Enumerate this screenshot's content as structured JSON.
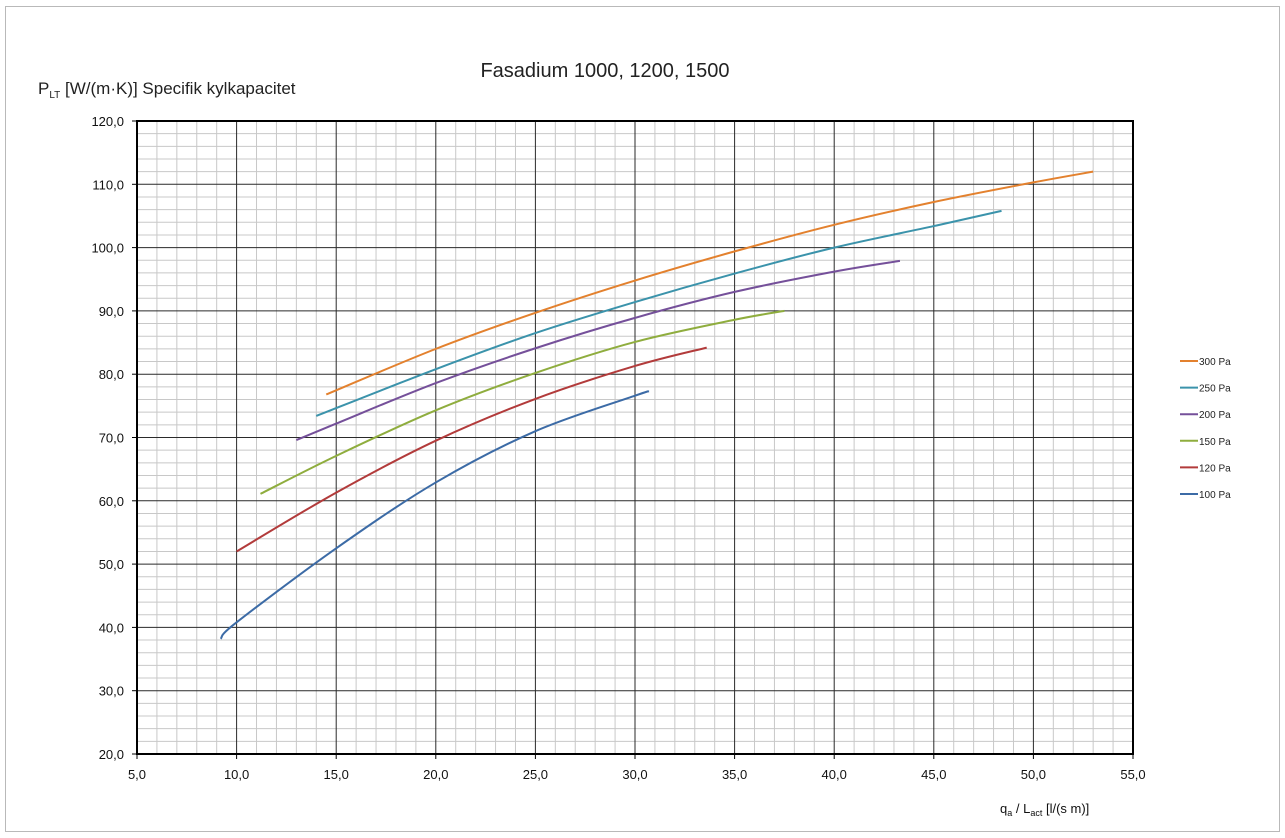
{
  "chart_data": {
    "type": "line",
    "title": "Fasadium 1000, 1200, 1500",
    "ylabel": {
      "main": "P",
      "sub": "LT",
      "rest": " [W/(m·K)] Specifik kylkapacitet"
    },
    "xlabel": {
      "q": "q",
      "q_sub": "a",
      "sep": " / L",
      "l_sub": "act",
      "unit": " [l/(s m)]"
    },
    "xlim": [
      5,
      55
    ],
    "ylim": [
      20,
      120
    ],
    "x_ticks": [
      "5,0",
      "10,0",
      "15,0",
      "20,0",
      "25,0",
      "30,0",
      "35,0",
      "40,0",
      "45,0",
      "50,0",
      "55,0"
    ],
    "y_ticks": [
      "20,0",
      "30,0",
      "40,0",
      "50,0",
      "60,0",
      "70,0",
      "80,0",
      "90,0",
      "100,0",
      "110,0",
      "120,0"
    ],
    "grid": true,
    "legend_position": "right",
    "series": [
      {
        "name": "300 Pa",
        "color": "#E3812E",
        "x": [
          14.5,
          20,
          25,
          30,
          35,
          40,
          45,
          50,
          53
        ],
        "y": [
          76.8,
          84.0,
          89.7,
          94.8,
          99.4,
          103.6,
          107.2,
          110.3,
          112.0
        ]
      },
      {
        "name": "250 Pa",
        "color": "#3B93AB",
        "x": [
          14.0,
          20,
          25,
          30,
          35,
          40,
          45,
          48.4
        ],
        "y": [
          73.4,
          80.8,
          86.5,
          91.4,
          95.9,
          100.0,
          103.4,
          105.8
        ]
      },
      {
        "name": "200 Pa",
        "color": "#75509A",
        "x": [
          13.0,
          15,
          20,
          25,
          30,
          35,
          40,
          43.3
        ],
        "y": [
          69.6,
          72.2,
          78.6,
          84.1,
          88.9,
          93.0,
          96.2,
          97.9
        ]
      },
      {
        "name": "150 Pa",
        "color": "#8FAD3E",
        "x": [
          11.2,
          15,
          20,
          25,
          30,
          35,
          37.5
        ],
        "y": [
          61.1,
          67.1,
          74.3,
          80.2,
          85.1,
          88.6,
          90.0
        ]
      },
      {
        "name": "120 Pa",
        "color": "#B23B3B",
        "x": [
          10.0,
          15,
          20,
          25,
          30,
          33.6
        ],
        "y": [
          52.0,
          61.3,
          69.5,
          76.1,
          81.3,
          84.2
        ]
      },
      {
        "name": "100 Pa",
        "color": "#3C6BA6",
        "x": [
          9.2,
          10,
          15,
          20,
          25,
          30,
          30.7
        ],
        "y": [
          38.2,
          40.8,
          52.5,
          62.9,
          71.0,
          76.6,
          77.3
        ]
      }
    ]
  }
}
